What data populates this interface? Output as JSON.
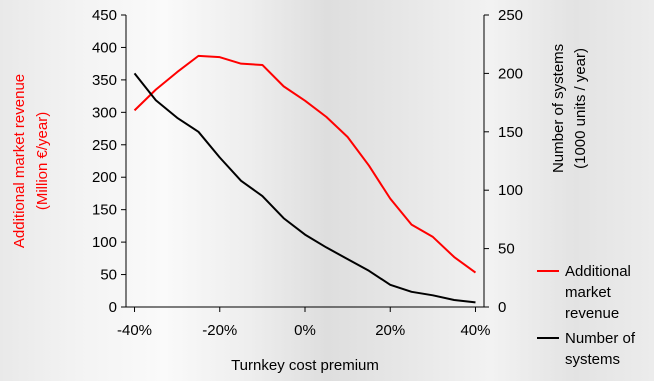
{
  "chart_data": {
    "type": "line",
    "xlabel": "Turnkey cost premium",
    "x": [
      -40,
      -35,
      -30,
      -25,
      -20,
      -15,
      -10,
      -5,
      0,
      5,
      10,
      15,
      20,
      25,
      30,
      35,
      40
    ],
    "x_tick_labels": [
      "-40%",
      "-20%",
      "0%",
      "20%",
      "40%"
    ],
    "x_ticks": [
      -40,
      -20,
      0,
      20,
      40
    ],
    "xlim": [
      -42,
      42
    ],
    "left_axis": {
      "label_line1": "Additional market revenue",
      "label_line2": "(Million €/year)",
      "color": "#ff0000",
      "ylim": [
        0,
        450
      ],
      "ticks": [
        "0",
        "50",
        "100",
        "150",
        "200",
        "250",
        "300",
        "350",
        "400",
        "450"
      ]
    },
    "right_axis": {
      "label_line1": "Number of systems",
      "label_line2": "(1000 units / year)",
      "color": "#000000",
      "ylim": [
        0,
        250
      ],
      "ticks": [
        "0",
        "50",
        "100",
        "150",
        "200",
        "250"
      ]
    },
    "series": [
      {
        "name": "Additional market revenue",
        "axis": "left",
        "color": "#ff0000",
        "values": [
          303,
          335,
          362,
          387,
          385,
          375,
          373,
          340,
          318,
          293,
          262,
          218,
          167,
          127,
          108,
          77,
          53
        ]
      },
      {
        "name": "Number of systems",
        "axis": "right",
        "color": "#000000",
        "values": [
          200,
          177,
          162,
          150,
          128,
          108,
          95,
          76,
          62,
          51,
          41,
          31,
          19,
          13,
          10,
          6,
          4
        ]
      }
    ],
    "legend": {
      "placement": "bottom-right",
      "items": [
        {
          "lines": [
            "Additional",
            "market",
            "revenue"
          ],
          "color": "#ff0000"
        },
        {
          "lines": [
            "Number of",
            "systems"
          ],
          "color": "#000000"
        }
      ]
    },
    "grid": false
  }
}
